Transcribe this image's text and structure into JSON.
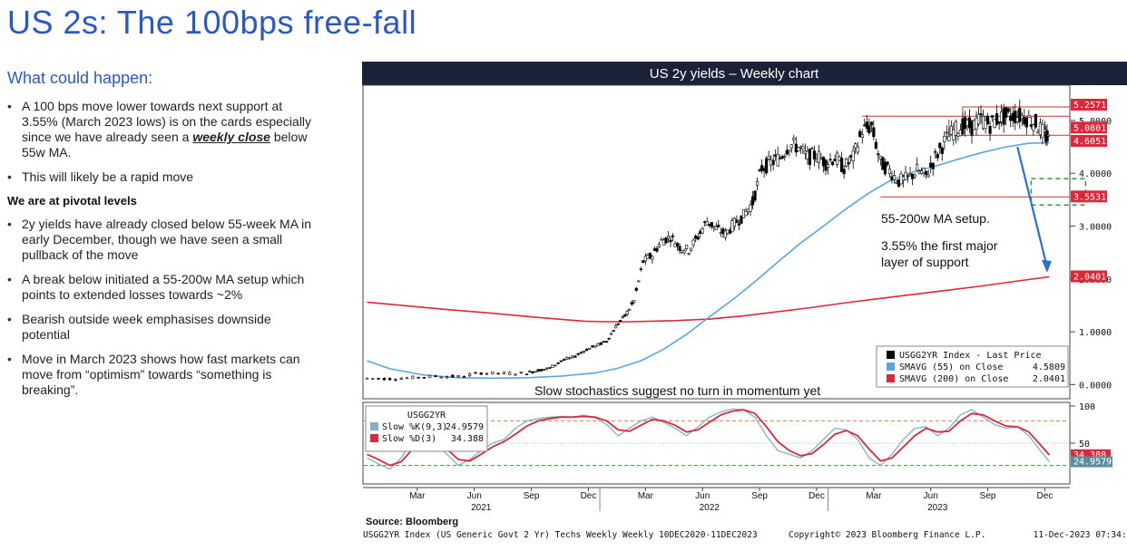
{
  "page": {
    "title": "US 2s: The 100bps free-fall",
    "left": {
      "heading1": "What could happen:",
      "bullets1": [
        {
          "pre": "A 100 bps move lower towards next support at 3.55% (March 2023 lows) is on the cards especially since we have already seen a ",
          "em": "weekly close",
          "post": " below 55w MA."
        },
        {
          "pre": "This will likely be a rapid move",
          "em": "",
          "post": ""
        }
      ],
      "heading2": "We are at pivotal levels",
      "bullets2": [
        {
          "pre": "2y yields have already closed below 55-week MA in early December, though we have seen a small pullback of the move",
          "em": "",
          "post": ""
        },
        {
          "pre": "A break below initiated a 55-200w MA setup which points to extended losses towards ~2%",
          "em": "",
          "post": ""
        },
        {
          "pre": "Bearish outside week emphasises downside potential",
          "em": "",
          "post": ""
        },
        {
          "pre": "Move in March 2023 shows how fast markets can move from “optimism” towards “something is breaking”.",
          "em": "",
          "post": ""
        }
      ]
    }
  },
  "colors": {
    "title_blue": "#2b59c3",
    "header_bg": "#1a2238",
    "price": "#000000",
    "sma55": "#5aa6e0",
    "sma200": "#d9293a",
    "stoch_k": "#7fb3c8",
    "stoch_d": "#d9293a",
    "label_red": "#d9293a",
    "label_teal": "#5b8fa0",
    "support_box": "#2f9a3a"
  },
  "chart_data": [
    {
      "type": "line",
      "title": "US 2y yields – Weekly chart",
      "ylim": [
        -0.2,
        5.6
      ],
      "yticks": [
        {
          "v": 0,
          "label": "0.0000"
        },
        {
          "v": 1,
          "label": "1.0000"
        },
        {
          "v": 2,
          "label": "2.0000"
        },
        {
          "v": 3,
          "label": "3.0000"
        },
        {
          "v": 4,
          "label": "4.0000"
        },
        {
          "v": 5,
          "label": "5.0000"
        }
      ],
      "grid": false,
      "x_range": [
        2020.94,
        2023.95
      ],
      "series": [
        {
          "name": "USGG2YR Index - Last Price",
          "kind": "price",
          "x": [
            2020.95,
            2021.05,
            2021.15,
            2021.25,
            2021.35,
            2021.45,
            2021.55,
            2021.65,
            2021.7,
            2021.75,
            2021.8,
            2021.85,
            2021.9,
            2021.95,
            2022.0,
            2022.04,
            2022.08,
            2022.12,
            2022.16,
            2022.2,
            2022.24,
            2022.28,
            2022.32,
            2022.36,
            2022.4,
            2022.44,
            2022.48,
            2022.52,
            2022.56,
            2022.6,
            2022.64,
            2022.68,
            2022.72,
            2022.76,
            2022.8,
            2022.84,
            2022.88,
            2022.92,
            2022.96,
            2023.0,
            2023.04,
            2023.08,
            2023.12,
            2023.16,
            2023.2,
            2023.24,
            2023.28,
            2023.32,
            2023.36,
            2023.4,
            2023.44,
            2023.48,
            2023.52,
            2023.56,
            2023.6,
            2023.64,
            2023.68,
            2023.72,
            2023.76,
            2023.8,
            2023.84,
            2023.88,
            2023.92,
            2023.94
          ],
          "values": [
            0.12,
            0.11,
            0.13,
            0.16,
            0.15,
            0.22,
            0.21,
            0.22,
            0.27,
            0.31,
            0.45,
            0.51,
            0.64,
            0.73,
            0.82,
            1.1,
            1.3,
            1.58,
            2.33,
            2.45,
            2.72,
            2.8,
            2.6,
            2.55,
            2.8,
            3.1,
            2.95,
            2.85,
            3.05,
            3.2,
            3.45,
            4.1,
            4.2,
            4.3,
            4.55,
            4.5,
            4.3,
            4.35,
            4.2,
            4.3,
            4.1,
            4.3,
            4.8,
            4.9,
            4.2,
            4.05,
            3.85,
            3.9,
            4.05,
            3.95,
            4.3,
            4.6,
            4.8,
            4.9,
            4.88,
            5.02,
            4.92,
            5.05,
            5.08,
            5.1,
            5.05,
            4.95,
            4.72,
            4.61
          ]
        },
        {
          "name": "SMAVG (55)  on Close",
          "kind": "sma55",
          "last": "4.5809",
          "x": [
            2020.95,
            2021.05,
            2021.2,
            2021.35,
            2021.5,
            2021.65,
            2021.8,
            2021.95,
            2022.05,
            2022.15,
            2022.25,
            2022.35,
            2022.45,
            2022.55,
            2022.65,
            2022.75,
            2022.85,
            2022.95,
            2023.05,
            2023.15,
            2023.25,
            2023.35,
            2023.45,
            2023.55,
            2023.65,
            2023.75,
            2023.85,
            2023.94
          ],
          "values": [
            0.45,
            0.3,
            0.18,
            0.13,
            0.12,
            0.13,
            0.16,
            0.22,
            0.31,
            0.45,
            0.67,
            0.95,
            1.28,
            1.6,
            1.95,
            2.32,
            2.68,
            3.0,
            3.33,
            3.63,
            3.88,
            4.03,
            4.15,
            4.28,
            4.4,
            4.5,
            4.57,
            4.58
          ]
        },
        {
          "name": "SMAVG (200)  on Close",
          "kind": "sma200",
          "last": "2.0401",
          "x": [
            2020.95,
            2021.1,
            2021.3,
            2021.5,
            2021.7,
            2021.9,
            2022.0,
            2022.1,
            2022.2,
            2022.3,
            2022.45,
            2022.6,
            2022.75,
            2022.9,
            2023.05,
            2023.2,
            2023.35,
            2023.5,
            2023.65,
            2023.8,
            2023.94
          ],
          "values": [
            1.56,
            1.5,
            1.42,
            1.35,
            1.27,
            1.2,
            1.19,
            1.19,
            1.2,
            1.21,
            1.24,
            1.3,
            1.38,
            1.46,
            1.55,
            1.63,
            1.71,
            1.79,
            1.87,
            1.96,
            2.04
          ]
        }
      ],
      "level_labels": [
        {
          "v": 5.2571,
          "label": "5.2571",
          "color": "red"
        },
        {
          "v": 5.0801,
          "label": "5.0801",
          "color": "red"
        },
        {
          "v": 4.6051,
          "label": "4.6051",
          "color": "black-red"
        },
        {
          "v": 3.5531,
          "label": "3.5531",
          "color": "red"
        },
        {
          "v": 2.0401,
          "label": "2.0401",
          "color": "red"
        }
      ],
      "annotations": {
        "setup": "55-200w MA setup.",
        "support_line1": "3.55% the first major",
        "support_line2": "layer of support",
        "stoch_note": "Slow stochastics suggest no turn in momentum yet"
      },
      "legend": {
        "placement": "bottom-right",
        "items": [
          {
            "label": "USGG2YR Index - Last Price",
            "value": "",
            "color": "#000000"
          },
          {
            "label": "SMAVG (55)  on Close",
            "value": "4.5809",
            "color": "#5aa6e0"
          },
          {
            "label": "SMAVG (200)  on Close",
            "value": "2.0401",
            "color": "#d9293a"
          }
        ]
      }
    },
    {
      "type": "line",
      "title": "USGG2YR",
      "ylim": [
        0,
        100
      ],
      "yticks": [
        {
          "v": 100,
          "label": "100"
        },
        {
          "v": 50,
          "label": "50"
        }
      ],
      "reference_lines": [
        80,
        20
      ],
      "series": [
        {
          "name": "Slow %K(9,3)",
          "last": "24.9579",
          "kind": "k",
          "x": [
            2020.95,
            2021.0,
            2021.05,
            2021.1,
            2021.15,
            2021.2,
            2021.25,
            2021.3,
            2021.35,
            2021.4,
            2021.45,
            2021.5,
            2021.55,
            2021.6,
            2021.65,
            2021.7,
            2021.75,
            2021.8,
            2021.85,
            2021.9,
            2021.95,
            2022.0,
            2022.05,
            2022.1,
            2022.15,
            2022.2,
            2022.25,
            2022.3,
            2022.35,
            2022.4,
            2022.45,
            2022.5,
            2022.55,
            2022.6,
            2022.65,
            2022.7,
            2022.75,
            2022.8,
            2022.85,
            2022.9,
            2022.95,
            2023.0,
            2023.05,
            2023.1,
            2023.15,
            2023.2,
            2023.25,
            2023.3,
            2023.35,
            2023.4,
            2023.45,
            2023.5,
            2023.55,
            2023.6,
            2023.65,
            2023.7,
            2023.75,
            2023.8,
            2023.85,
            2023.9,
            2023.94
          ],
          "values": [
            30,
            22,
            15,
            30,
            55,
            60,
            48,
            35,
            20,
            28,
            40,
            50,
            55,
            70,
            80,
            83,
            85,
            86,
            85,
            88,
            84,
            75,
            60,
            70,
            80,
            85,
            78,
            70,
            60,
            72,
            85,
            92,
            96,
            95,
            85,
            60,
            40,
            35,
            30,
            40,
            55,
            70,
            68,
            55,
            30,
            20,
            35,
            55,
            70,
            72,
            60,
            70,
            88,
            95,
            85,
            75,
            70,
            72,
            60,
            40,
            25
          ]
        },
        {
          "name": "Slow %D(3)",
          "last": "34.388",
          "kind": "d",
          "x": [
            2020.95,
            2021.0,
            2021.05,
            2021.1,
            2021.15,
            2021.2,
            2021.25,
            2021.3,
            2021.35,
            2021.4,
            2021.45,
            2021.5,
            2021.55,
            2021.6,
            2021.65,
            2021.7,
            2021.75,
            2021.8,
            2021.85,
            2021.9,
            2021.95,
            2022.0,
            2022.05,
            2022.1,
            2022.15,
            2022.2,
            2022.25,
            2022.3,
            2022.35,
            2022.4,
            2022.45,
            2022.5,
            2022.55,
            2022.6,
            2022.65,
            2022.7,
            2022.75,
            2022.8,
            2022.85,
            2022.9,
            2022.95,
            2023.0,
            2023.05,
            2023.1,
            2023.15,
            2023.2,
            2023.25,
            2023.3,
            2023.35,
            2023.4,
            2023.45,
            2023.5,
            2023.55,
            2023.6,
            2023.65,
            2023.7,
            2023.75,
            2023.8,
            2023.85,
            2023.9,
            2023.94
          ],
          "values": [
            35,
            28,
            20,
            25,
            42,
            55,
            52,
            42,
            28,
            26,
            35,
            45,
            52,
            62,
            73,
            80,
            83,
            85,
            85,
            86,
            85,
            80,
            68,
            66,
            74,
            82,
            80,
            74,
            65,
            68,
            78,
            88,
            93,
            95,
            90,
            72,
            52,
            40,
            33,
            36,
            48,
            62,
            67,
            60,
            42,
            26,
            30,
            45,
            60,
            70,
            65,
            66,
            80,
            90,
            88,
            80,
            73,
            72,
            65,
            48,
            34
          ]
        }
      ],
      "label_k": "24.9579",
      "label_d": "34.388",
      "xaxis": {
        "months": [
          {
            "x": 2021.17,
            "label": "Mar"
          },
          {
            "x": 2021.42,
            "label": "Jun"
          },
          {
            "x": 2021.67,
            "label": "Sep"
          },
          {
            "x": 2021.92,
            "label": "Dec"
          },
          {
            "x": 2022.17,
            "label": "Mar"
          },
          {
            "x": 2022.42,
            "label": "Jun"
          },
          {
            "x": 2022.67,
            "label": "Sep"
          },
          {
            "x": 2022.92,
            "label": "Dec"
          },
          {
            "x": 2023.17,
            "label": "Mar"
          },
          {
            "x": 2023.42,
            "label": "Jun"
          },
          {
            "x": 2023.67,
            "label": "Sep"
          },
          {
            "x": 2023.92,
            "label": "Dec"
          }
        ],
        "years": [
          {
            "x": 2021.45,
            "label": "2021"
          },
          {
            "x": 2022.45,
            "label": "2022"
          },
          {
            "x": 2023.45,
            "label": "2023"
          }
        ]
      }
    }
  ],
  "footer": {
    "source": "Source: Bloomberg",
    "index": "USGG2YR Index (US Generic Govt 2 Yr) Techs Weekly  Weekly 10DEC2020-11DEC2023",
    "copyright": "Copyright© 2023 Bloomberg Finance L.P.",
    "timestamp": "11-Dec-2023 07:34:54"
  }
}
